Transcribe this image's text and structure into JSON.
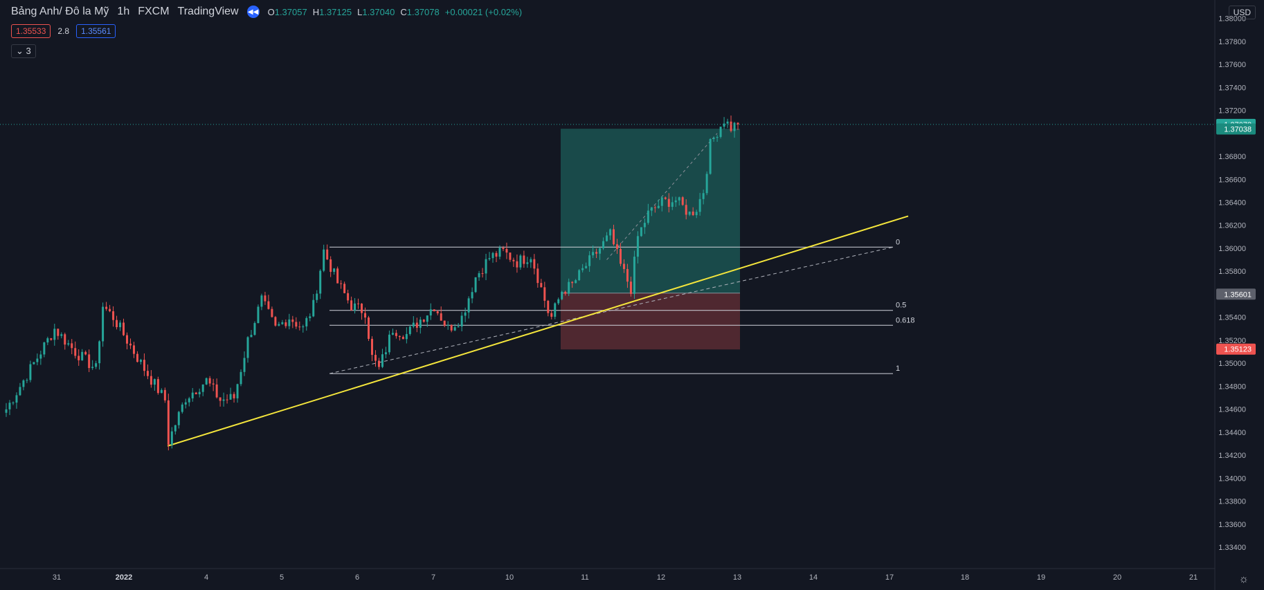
{
  "header": {
    "symbol": "Bảng Anh/ Đô la Mỹ",
    "interval": "1h",
    "broker": "FXCM",
    "source": "TradingView",
    "ohlc": [
      {
        "k": "O",
        "v": "1.37057"
      },
      {
        "k": "H",
        "v": "1.37125"
      },
      {
        "k": "L",
        "v": "1.37040"
      },
      {
        "k": "C",
        "v": "1.37078"
      },
      {
        "k": "",
        "v": "+0.00021 (+0.02%)"
      }
    ],
    "sell_price": "1.35533",
    "spread": "2.8",
    "buy_price": "1.35561",
    "collapse_label": "3",
    "currency": "USD"
  },
  "colors": {
    "background": "#131722",
    "up": "#26a69a",
    "down": "#ef5350",
    "trendline": "#f5e63c",
    "profit_zone": "#1c5c58",
    "loss_zone": "#5a2b33"
  },
  "chart_data": {
    "type": "candlestick",
    "title": "",
    "xlabel": "",
    "ylabel": "",
    "ylim": [
      1.3328,
      1.3816
    ],
    "y_ticks": [
      1.38,
      1.378,
      1.376,
      1.374,
      1.372,
      1.368,
      1.366,
      1.364,
      1.362,
      1.36,
      1.358,
      1.354,
      1.352,
      1.35,
      1.348,
      1.346,
      1.344,
      1.342,
      1.34,
      1.338,
      1.336,
      1.334
    ],
    "y_tick_labels": [
      "1.38000",
      "1.37800",
      "1.37600",
      "1.37400",
      "1.37200",
      "1.36800",
      "1.36600",
      "1.36400",
      "1.36200",
      "1.36000",
      "1.35800",
      "1.35400",
      "1.35200",
      "1.35000",
      "1.34800",
      "1.34600",
      "1.34400",
      "1.34200",
      "1.34000",
      "1.33800",
      "1.33600",
      "1.33400"
    ],
    "x_ticks": [
      "31",
      "2022",
      "4",
      "5",
      "6",
      "7",
      "10",
      "11",
      "12",
      "13",
      "14",
      "17",
      "18",
      "19",
      "20",
      "21"
    ],
    "price_markers": [
      {
        "label": "1.37078",
        "value": 1.37078,
        "color": "#26a69a"
      },
      {
        "label": "1.37038",
        "value": 1.37038,
        "color": "#1b8b7e"
      },
      {
        "label": "1.35601",
        "value": 1.35601,
        "color": "#5d606b"
      },
      {
        "label": "1.35123",
        "value": 1.35123,
        "color": "#ef5350"
      }
    ],
    "last_price": 1.37078,
    "path": [
      [
        0,
        1.346
      ],
      [
        8,
        1.35
      ],
      [
        14,
        1.353
      ],
      [
        20,
        1.351
      ],
      [
        26,
        1.3495
      ],
      [
        28,
        1.355
      ],
      [
        31,
        1.354
      ],
      [
        34,
        1.3525
      ],
      [
        40,
        1.3495
      ],
      [
        46,
        1.3468
      ],
      [
        47,
        1.3432
      ],
      [
        52,
        1.347
      ],
      [
        58,
        1.3485
      ],
      [
        62,
        1.3468
      ],
      [
        66,
        1.347
      ],
      [
        70,
        1.352
      ],
      [
        74,
        1.3555
      ],
      [
        78,
        1.353
      ],
      [
        82,
        1.354
      ],
      [
        86,
        1.353
      ],
      [
        89,
        1.355
      ],
      [
        92,
        1.3598
      ],
      [
        96,
        1.357
      ],
      [
        100,
        1.355
      ],
      [
        104,
        1.3545
      ],
      [
        106,
        1.3505
      ],
      [
        108,
        1.3495
      ],
      [
        112,
        1.353
      ],
      [
        116,
        1.3525
      ],
      [
        120,
        1.3538
      ],
      [
        124,
        1.355
      ],
      [
        128,
        1.353
      ],
      [
        132,
        1.354
      ],
      [
        136,
        1.3575
      ],
      [
        140,
        1.3592
      ],
      [
        144,
        1.3597
      ],
      [
        148,
        1.3588
      ],
      [
        152,
        1.3594
      ],
      [
        154,
        1.3575
      ],
      [
        157,
        1.3545
      ],
      [
        158,
        1.354
      ],
      [
        161,
        1.3563
      ],
      [
        164,
        1.3568
      ],
      [
        168,
        1.3585
      ],
      [
        172,
        1.36
      ],
      [
        175,
        1.3612
      ],
      [
        178,
        1.3585
      ],
      [
        181,
        1.3565
      ],
      [
        183,
        1.361
      ],
      [
        186,
        1.363
      ],
      [
        190,
        1.364
      ],
      [
        194,
        1.3642
      ],
      [
        198,
        1.363
      ],
      [
        200,
        1.3635
      ],
      [
        202,
        1.365
      ],
      [
        204,
        1.369
      ],
      [
        206,
        1.3702
      ],
      [
        208,
        1.3712
      ],
      [
        210,
        1.3705
      ],
      [
        212,
        1.3708
      ]
    ],
    "projection": {
      "start": [
        0.3,
        1.346
      ],
      "end": [
        0.2,
        1.3554
      ]
    },
    "fibonacci": {
      "low": 1.3491,
      "high": 1.3601,
      "levels": [
        {
          "ratio": 0,
          "label": "0"
        },
        {
          "ratio": 0.5,
          "label": "0.5"
        },
        {
          "ratio": 0.618,
          "label": "0.618"
        },
        {
          "ratio": 1,
          "label": "1"
        }
      ]
    },
    "position": {
      "type": "long",
      "target": 1.3704,
      "entry": 1.3561,
      "stop": 1.3512
    }
  }
}
